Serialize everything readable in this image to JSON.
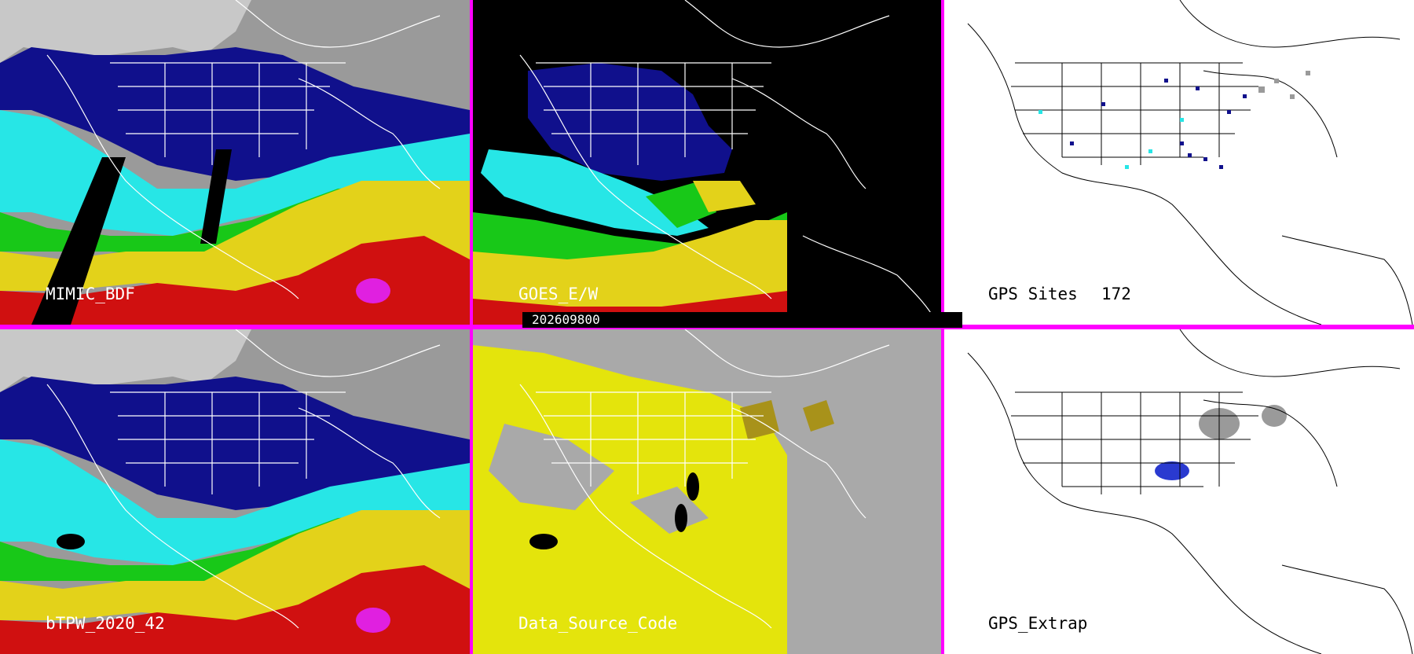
{
  "panels": {
    "p1": {
      "label": "MIMIC_BDF"
    },
    "p2": {
      "label": "GOES_E/W"
    },
    "p3": {
      "label": "GPS Sites",
      "count": "172"
    },
    "p4": {
      "label": "bTPW_2020_42"
    },
    "p5": {
      "label": "Data_Source_Code"
    },
    "p6": {
      "label": "GPS_Extrap"
    }
  },
  "timestamp": "202609800",
  "colors": {
    "divider": "#ff00ff",
    "tpw_dry_grey": "#9a9a9a",
    "tpw_navy": "#10108c",
    "tpw_blue": "#2a3ad0",
    "tpw_cyan": "#27e6e6",
    "tpw_green": "#18c818",
    "tpw_yellow": "#e3d21a",
    "tpw_red": "#d01010",
    "tpw_magenta": "#e020e0",
    "source_yellow": "#e4e40c",
    "source_olive": "#a8921a",
    "source_grey": "#a9a9a9",
    "map_lines_on_dark": "#ffffff",
    "map_lines_on_white": "#000000"
  }
}
